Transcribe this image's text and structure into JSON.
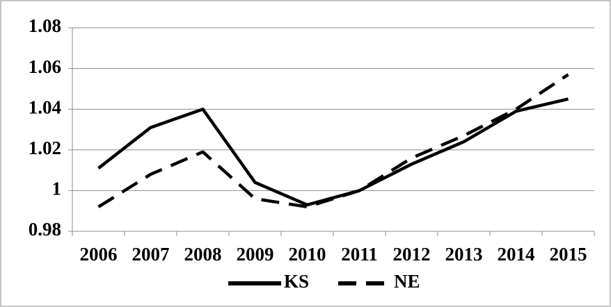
{
  "chart_data": {
    "type": "line",
    "categories": [
      "2006",
      "2007",
      "2008",
      "2009",
      "2010",
      "2011",
      "2012",
      "2013",
      "2014",
      "2015"
    ],
    "series": [
      {
        "name": "KS",
        "color": "#000000",
        "dash": "solid",
        "values": [
          1.011,
          1.031,
          1.04,
          1.004,
          0.993,
          1.0,
          1.013,
          1.024,
          1.039,
          1.045
        ]
      },
      {
        "name": "NE",
        "color": "#000000",
        "dash": "dashed",
        "values": [
          0.992,
          1.008,
          1.019,
          0.996,
          0.992,
          1.0,
          1.016,
          1.027,
          1.04,
          1.057
        ]
      }
    ],
    "ylim": [
      0.98,
      1.08
    ],
    "yticks": [
      0.98,
      1,
      1.02,
      1.04,
      1.06,
      1.08
    ],
    "grid": true,
    "legend": "bottom"
  }
}
